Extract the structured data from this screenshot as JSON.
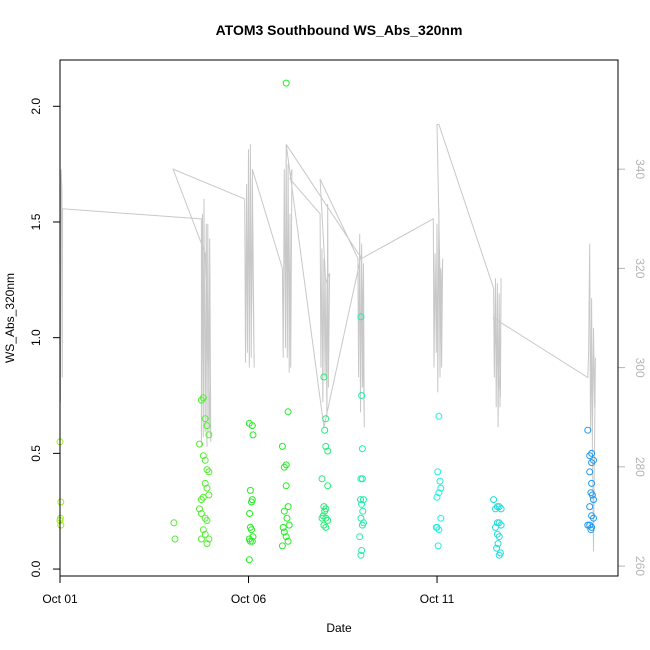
{
  "chart_data": {
    "type": "scatter",
    "title": "ATOM3 Southbound WS_Abs_320nm",
    "xlabel": "Date",
    "ylabel": "WS_Abs_320nm",
    "xlim": [
      0,
      14.8
    ],
    "ylim": [
      -0.03,
      2.2
    ],
    "xticks": [
      {
        "value": 0,
        "label": "Oct 01"
      },
      {
        "value": 5,
        "label": "Oct 06"
      },
      {
        "value": 10,
        "label": "Oct 11"
      }
    ],
    "yticks": [
      {
        "value": 0.0,
        "label": "0.0"
      },
      {
        "value": 0.5,
        "label": "0.5"
      },
      {
        "value": 1.0,
        "label": "1.0"
      },
      {
        "value": 1.5,
        "label": "1.5"
      },
      {
        "value": 2.0,
        "label": "2.0"
      }
    ],
    "y2lim": [
      258,
      362
    ],
    "y2ticks": [
      {
        "value": 260,
        "label": "260"
      },
      {
        "value": 280,
        "label": "280"
      },
      {
        "value": 300,
        "label": "300"
      },
      {
        "value": 320,
        "label": "320"
      },
      {
        "value": 340,
        "label": "340"
      }
    ],
    "grid": false,
    "colors": {
      "line": "#c8c8c8",
      "right_axis": "#b5b5b5",
      "points": [
        "#9ef01a",
        "#55ee33",
        "#22ee22",
        "#22ee77",
        "#22eeaa",
        "#22eedd",
        "#22dddd",
        "#2299ee"
      ]
    },
    "series": [
      {
        "type": "scatter",
        "points": [
          [
            0.0,
            0.55,
            0
          ],
          [
            0.02,
            0.29,
            0
          ],
          [
            0.01,
            0.22,
            0
          ],
          [
            0.0,
            0.21,
            0
          ],
          [
            0.02,
            0.19,
            0
          ],
          [
            3.02,
            0.2,
            1
          ],
          [
            3.05,
            0.13,
            1
          ],
          [
            3.75,
            0.73,
            1
          ],
          [
            3.8,
            0.74,
            1
          ],
          [
            3.85,
            0.65,
            1
          ],
          [
            3.9,
            0.62,
            1
          ],
          [
            3.95,
            0.58,
            1
          ],
          [
            3.7,
            0.54,
            1
          ],
          [
            3.8,
            0.49,
            1
          ],
          [
            3.85,
            0.47,
            1
          ],
          [
            3.9,
            0.43,
            1
          ],
          [
            3.95,
            0.42,
            1
          ],
          [
            3.85,
            0.37,
            1
          ],
          [
            3.9,
            0.35,
            1
          ],
          [
            3.95,
            0.32,
            1
          ],
          [
            3.8,
            0.31,
            1
          ],
          [
            3.75,
            0.3,
            1
          ],
          [
            3.7,
            0.26,
            1
          ],
          [
            3.75,
            0.24,
            1
          ],
          [
            3.85,
            0.22,
            1
          ],
          [
            3.9,
            0.21,
            1
          ],
          [
            3.8,
            0.17,
            1
          ],
          [
            3.85,
            0.15,
            1
          ],
          [
            3.75,
            0.13,
            1
          ],
          [
            3.95,
            0.13,
            1
          ],
          [
            3.9,
            0.11,
            1
          ],
          [
            5.02,
            0.63,
            2
          ],
          [
            5.1,
            0.62,
            2
          ],
          [
            5.12,
            0.58,
            2
          ],
          [
            5.05,
            0.34,
            2
          ],
          [
            5.1,
            0.3,
            2
          ],
          [
            5.08,
            0.29,
            2
          ],
          [
            5.03,
            0.24,
            2
          ],
          [
            5.05,
            0.18,
            2
          ],
          [
            5.08,
            0.17,
            2
          ],
          [
            5.12,
            0.14,
            2
          ],
          [
            5.02,
            0.13,
            2
          ],
          [
            5.05,
            0.12,
            2
          ],
          [
            5.1,
            0.12,
            2
          ],
          [
            5.02,
            0.04,
            2
          ],
          [
            6.0,
            2.1,
            2
          ],
          [
            6.05,
            0.68,
            2
          ],
          [
            5.9,
            0.53,
            2
          ],
          [
            6.0,
            0.45,
            2
          ],
          [
            5.95,
            0.44,
            2
          ],
          [
            6.0,
            0.36,
            2
          ],
          [
            6.05,
            0.27,
            2
          ],
          [
            5.95,
            0.25,
            2
          ],
          [
            6.02,
            0.22,
            2
          ],
          [
            6.08,
            0.19,
            2
          ],
          [
            5.92,
            0.18,
            2
          ],
          [
            5.95,
            0.16,
            2
          ],
          [
            6.0,
            0.14,
            2
          ],
          [
            6.05,
            0.12,
            2
          ],
          [
            5.9,
            0.1,
            2
          ],
          [
            7.0,
            0.83,
            3
          ],
          [
            7.05,
            0.65,
            3
          ],
          [
            7.02,
            0.6,
            3
          ],
          [
            7.05,
            0.53,
            3
          ],
          [
            7.1,
            0.51,
            3
          ],
          [
            7.1,
            0.36,
            3
          ],
          [
            6.95,
            0.39,
            3
          ],
          [
            7.0,
            0.27,
            3
          ],
          [
            7.05,
            0.26,
            3
          ],
          [
            7.02,
            0.25,
            3
          ],
          [
            6.98,
            0.23,
            3
          ],
          [
            7.05,
            0.22,
            3
          ],
          [
            6.95,
            0.22,
            3
          ],
          [
            7.1,
            0.21,
            3
          ],
          [
            7.0,
            0.19,
            3
          ],
          [
            7.05,
            0.18,
            3
          ],
          [
            7.98,
            1.09,
            4
          ],
          [
            8.0,
            0.75,
            4
          ],
          [
            8.02,
            0.52,
            4
          ],
          [
            7.98,
            0.39,
            4
          ],
          [
            8.02,
            0.39,
            4
          ],
          [
            7.97,
            0.3,
            4
          ],
          [
            8.05,
            0.3,
            4
          ],
          [
            8.0,
            0.28,
            4
          ],
          [
            8.03,
            0.25,
            4
          ],
          [
            7.98,
            0.22,
            4
          ],
          [
            8.05,
            0.2,
            4
          ],
          [
            8.02,
            0.19,
            4
          ],
          [
            7.95,
            0.14,
            4
          ],
          [
            8.0,
            0.08,
            4
          ],
          [
            7.98,
            0.06,
            4
          ],
          [
            10.05,
            0.66,
            5
          ],
          [
            10.02,
            0.42,
            5
          ],
          [
            10.08,
            0.38,
            5
          ],
          [
            10.1,
            0.35,
            5
          ],
          [
            10.05,
            0.33,
            5
          ],
          [
            10.0,
            0.31,
            5
          ],
          [
            10.1,
            0.22,
            5
          ],
          [
            10.0,
            0.18,
            5
          ],
          [
            10.05,
            0.17,
            5
          ],
          [
            9.98,
            0.18,
            5
          ],
          [
            10.03,
            0.1,
            5
          ],
          [
            11.5,
            0.3,
            6
          ],
          [
            11.6,
            0.27,
            6
          ],
          [
            11.65,
            0.27,
            6
          ],
          [
            11.7,
            0.26,
            6
          ],
          [
            11.55,
            0.26,
            6
          ],
          [
            11.6,
            0.2,
            6
          ],
          [
            11.65,
            0.2,
            6
          ],
          [
            11.7,
            0.19,
            6
          ],
          [
            11.55,
            0.18,
            6
          ],
          [
            11.6,
            0.15,
            6
          ],
          [
            11.65,
            0.14,
            6
          ],
          [
            11.62,
            0.11,
            6
          ],
          [
            11.58,
            0.09,
            6
          ],
          [
            11.68,
            0.07,
            6
          ],
          [
            11.65,
            0.06,
            6
          ],
          [
            14.0,
            0.6,
            7
          ],
          [
            14.1,
            0.5,
            7
          ],
          [
            14.05,
            0.49,
            7
          ],
          [
            14.15,
            0.47,
            7
          ],
          [
            14.1,
            0.46,
            7
          ],
          [
            14.05,
            0.42,
            7
          ],
          [
            14.1,
            0.37,
            7
          ],
          [
            14.08,
            0.33,
            7
          ],
          [
            14.12,
            0.32,
            7
          ],
          [
            14.15,
            0.3,
            7
          ],
          [
            14.05,
            0.27,
            7
          ],
          [
            14.1,
            0.23,
            7
          ],
          [
            14.15,
            0.22,
            7
          ],
          [
            14.0,
            0.19,
            7
          ],
          [
            14.05,
            0.19,
            7
          ],
          [
            14.1,
            0.18,
            7
          ],
          [
            14.08,
            0.17,
            7
          ]
        ]
      },
      {
        "type": "line",
        "axis": "right",
        "points": [
          [
            0.0,
            299
          ],
          [
            0.01,
            293
          ],
          [
            0.03,
            340
          ],
          [
            0.05,
            336
          ],
          [
            0.06,
            298
          ],
          [
            0.07,
            332
          ],
          [
            3.7,
            330
          ],
          [
            3.75,
            330
          ],
          [
            3.75,
            284
          ],
          [
            3.78,
            331
          ],
          [
            3.8,
            286
          ],
          [
            3.82,
            334
          ],
          [
            3.85,
            287
          ],
          [
            3.88,
            329
          ],
          [
            3.9,
            284
          ],
          [
            3.92,
            329
          ],
          [
            3.95,
            287
          ],
          [
            3.97,
            326
          ],
          [
            4.0,
            285
          ],
          [
            3.85,
            323
          ],
          [
            3.0,
            340
          ],
          [
            4.9,
            334
          ],
          [
            4.92,
            301
          ],
          [
            4.95,
            337
          ],
          [
            4.97,
            303
          ],
          [
            5.0,
            344
          ],
          [
            5.02,
            300
          ],
          [
            5.05,
            345
          ],
          [
            5.07,
            302
          ],
          [
            5.1,
            338
          ],
          [
            5.12,
            316
          ],
          [
            5.15,
            300
          ],
          [
            5.1,
            340
          ],
          [
            5.9,
            320
          ],
          [
            5.92,
            302
          ],
          [
            5.95,
            340
          ],
          [
            5.98,
            304
          ],
          [
            6.0,
            345
          ],
          [
            6.03,
            302
          ],
          [
            6.05,
            341
          ],
          [
            6.08,
            299
          ],
          [
            6.1,
            331
          ],
          [
            6.12,
            300
          ],
          [
            6.15,
            340
          ],
          [
            6.1,
            338
          ],
          [
            6.9,
            331
          ],
          [
            6.92,
            300
          ],
          [
            6.95,
            324
          ],
          [
            6.97,
            293
          ],
          [
            7.0,
            322
          ],
          [
            7.03,
            298
          ],
          [
            7.05,
            318
          ],
          [
            7.08,
            290
          ],
          [
            7.1,
            333
          ],
          [
            7.12,
            296
          ],
          [
            7.15,
            319
          ],
          [
            7.05,
            317
          ],
          [
            6.9,
            338
          ],
          [
            7.9,
            322
          ],
          [
            7.92,
            298
          ],
          [
            7.95,
            327
          ],
          [
            7.97,
            291
          ],
          [
            8.0,
            325
          ],
          [
            8.02,
            296
          ],
          [
            8.05,
            321
          ],
          [
            8.07,
            288
          ],
          [
            8.0,
            323
          ],
          [
            7.0,
            288
          ],
          [
            6.0,
            345
          ],
          [
            8.0,
            322
          ],
          [
            9.9,
            330
          ],
          [
            9.92,
            300
          ],
          [
            9.95,
            323
          ],
          [
            9.98,
            303
          ],
          [
            10.0,
            329
          ],
          [
            10.02,
            295
          ],
          [
            10.05,
            332
          ],
          [
            10.08,
            298
          ],
          [
            10.1,
            320
          ],
          [
            10.12,
            300
          ],
          [
            10.15,
            322
          ],
          [
            10.1,
            310
          ],
          [
            10.0,
            349
          ],
          [
            10.05,
            349
          ],
          [
            11.5,
            316
          ],
          [
            11.52,
            298
          ],
          [
            11.55,
            318
          ],
          [
            11.57,
            292
          ],
          [
            11.6,
            317
          ],
          [
            11.62,
            288
          ],
          [
            11.65,
            315
          ],
          [
            11.67,
            292
          ],
          [
            11.7,
            318
          ],
          [
            11.68,
            294
          ],
          [
            11.5,
            310
          ],
          [
            14.0,
            298
          ],
          [
            14.02,
            303
          ],
          [
            14.05,
            325
          ],
          [
            14.07,
            287
          ],
          [
            14.1,
            314
          ],
          [
            14.12,
            285
          ],
          [
            14.15,
            308
          ],
          [
            14.18,
            292
          ],
          [
            14.2,
            302
          ],
          [
            14.15,
            263
          ],
          [
            14.1,
            300
          ]
        ]
      }
    ]
  }
}
